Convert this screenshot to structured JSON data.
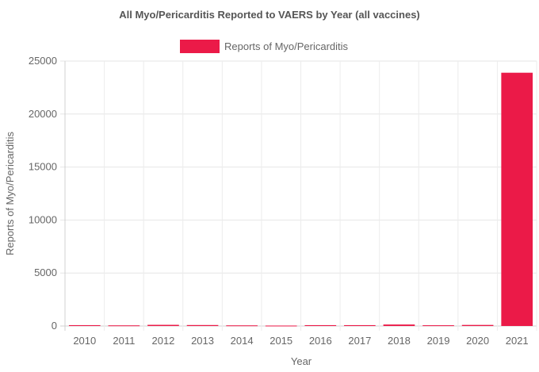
{
  "chart_data": {
    "type": "bar",
    "title": "All Myo/Pericarditis Reported to VAERS by Year (all vaccines)",
    "xlabel": "Year",
    "ylabel": "Reports of Myo/Pericarditis",
    "categories": [
      "2010",
      "2011",
      "2012",
      "2013",
      "2014",
      "2015",
      "2016",
      "2017",
      "2018",
      "2019",
      "2020",
      "2021"
    ],
    "series": [
      {
        "name": "Reports of Myo/Pericarditis",
        "color": "#eb1a48",
        "values": [
          80,
          60,
          110,
          90,
          60,
          40,
          80,
          80,
          140,
          70,
          100,
          23900
        ]
      }
    ],
    "yticks": [
      "0",
      "5000",
      "10000",
      "15000",
      "20000",
      "25000"
    ],
    "ylim": [
      0,
      25000
    ],
    "legend_position": "top-center",
    "grid": true
  }
}
